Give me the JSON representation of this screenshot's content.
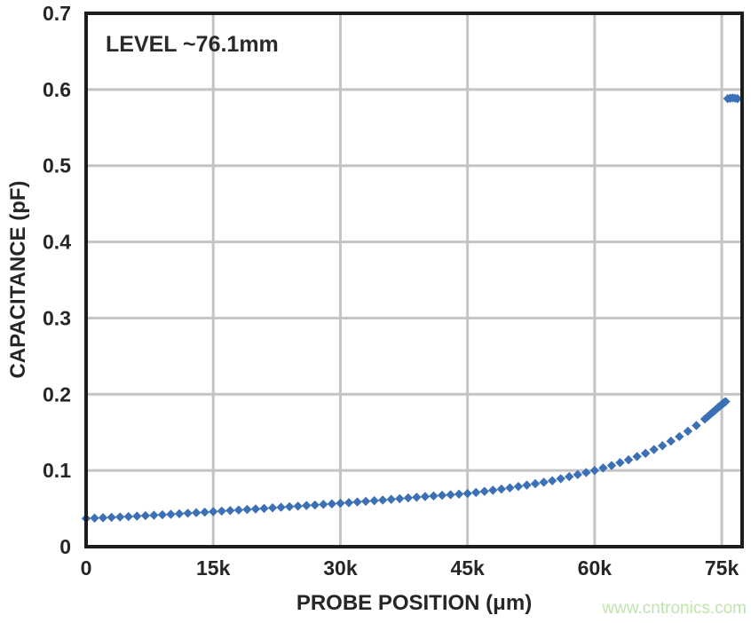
{
  "page": {
    "background": "#ffffff"
  },
  "watermark": {
    "text": "www.cntronics.com",
    "color": "#bfe4ad"
  },
  "chart_data": {
    "type": "scatter",
    "annotation": "LEVEL ~76.1mm",
    "xlabel": "PROBE POSITION (μm)",
    "ylabel": "CAPACITANCE (pF)",
    "xlim": [
      0,
      77400
    ],
    "ylim": [
      0,
      0.7
    ],
    "grid": true,
    "legend": false,
    "xticks": [
      {
        "value": 0,
        "label": "0"
      },
      {
        "value": 15000,
        "label": "15k"
      },
      {
        "value": 30000,
        "label": "30k"
      },
      {
        "value": 45000,
        "label": "45k"
      },
      {
        "value": 60000,
        "label": "60k"
      },
      {
        "value": 75000,
        "label": "75k"
      }
    ],
    "yticks": [
      {
        "value": 0.0,
        "label": "0"
      },
      {
        "value": 0.1,
        "label": "0.1"
      },
      {
        "value": 0.2,
        "label": "0.2"
      },
      {
        "value": 0.3,
        "label": "0.3"
      },
      {
        "value": 0.4,
        "label": "0.4"
      },
      {
        "value": 0.5,
        "label": "0.5"
      },
      {
        "value": 0.6,
        "label": "0.6"
      },
      {
        "value": 0.7,
        "label": "0.7"
      }
    ],
    "marker": {
      "shape": "diamond",
      "size": 10.4,
      "color": "#3b70b6"
    },
    "colors": {
      "grid": "#c4c4c4",
      "frame": "#1d1d1d",
      "text": "#262626"
    },
    "series": [
      {
        "name": "capacitance-vs-position",
        "points": [
          [
            0,
            0.037
          ],
          [
            1000,
            0.0375
          ],
          [
            2000,
            0.038
          ],
          [
            3000,
            0.0385
          ],
          [
            4000,
            0.039
          ],
          [
            5000,
            0.0395
          ],
          [
            6000,
            0.0401
          ],
          [
            7000,
            0.0407
          ],
          [
            8000,
            0.0413
          ],
          [
            9000,
            0.0419
          ],
          [
            10000,
            0.0425
          ],
          [
            11000,
            0.0432
          ],
          [
            12000,
            0.0439
          ],
          [
            13000,
            0.0446
          ],
          [
            14000,
            0.0453
          ],
          [
            15000,
            0.046
          ],
          [
            16000,
            0.0467
          ],
          [
            17000,
            0.0474
          ],
          [
            18000,
            0.0481
          ],
          [
            19000,
            0.0488
          ],
          [
            20000,
            0.0495
          ],
          [
            21000,
            0.0502
          ],
          [
            22000,
            0.051
          ],
          [
            23000,
            0.0517
          ],
          [
            24000,
            0.0525
          ],
          [
            25000,
            0.0532
          ],
          [
            26000,
            0.054
          ],
          [
            27000,
            0.0547
          ],
          [
            28000,
            0.0555
          ],
          [
            29000,
            0.0562
          ],
          [
            30000,
            0.057
          ],
          [
            31000,
            0.0578
          ],
          [
            32000,
            0.0587
          ],
          [
            33000,
            0.0595
          ],
          [
            34000,
            0.0604
          ],
          [
            35000,
            0.0612
          ],
          [
            36000,
            0.0621
          ],
          [
            37000,
            0.063
          ],
          [
            38000,
            0.064
          ],
          [
            39000,
            0.0649
          ],
          [
            40000,
            0.0658
          ],
          [
            41000,
            0.0666
          ],
          [
            42000,
            0.0674
          ],
          [
            43000,
            0.0682
          ],
          [
            44000,
            0.069
          ],
          [
            45000,
            0.0698
          ],
          [
            46000,
            0.0712
          ],
          [
            47000,
            0.0726
          ],
          [
            48000,
            0.0741
          ],
          [
            49000,
            0.0756
          ],
          [
            50000,
            0.0772
          ],
          [
            51000,
            0.079
          ],
          [
            52000,
            0.0808
          ],
          [
            53000,
            0.0827
          ],
          [
            54000,
            0.0846
          ],
          [
            55000,
            0.0865
          ],
          [
            56000,
            0.0892
          ],
          [
            57000,
            0.0919
          ],
          [
            58000,
            0.0946
          ],
          [
            59000,
            0.0973
          ],
          [
            60000,
            0.1
          ],
          [
            61000,
            0.1033
          ],
          [
            62000,
            0.1065
          ],
          [
            63000,
            0.1103
          ],
          [
            64000,
            0.114
          ],
          [
            65000,
            0.1183
          ],
          [
            66000,
            0.1225
          ],
          [
            67000,
            0.1275
          ],
          [
            68000,
            0.1325
          ],
          [
            69000,
            0.1385
          ],
          [
            70000,
            0.1445
          ],
          [
            71000,
            0.1515
          ],
          [
            72000,
            0.159
          ],
          [
            73000,
            0.1675
          ],
          [
            73300,
            0.1703
          ],
          [
            73600,
            0.1732
          ],
          [
            73900,
            0.1761
          ],
          [
            74100,
            0.178
          ],
          [
            74300,
            0.1799
          ],
          [
            74500,
            0.182
          ],
          [
            74650,
            0.1834
          ],
          [
            74800,
            0.1847
          ],
          [
            74950,
            0.1861
          ],
          [
            75050,
            0.187
          ],
          [
            75150,
            0.1879
          ],
          [
            75250,
            0.1888
          ],
          [
            75350,
            0.1896
          ],
          [
            75450,
            0.1904
          ]
        ]
      },
      {
        "name": "level-contact-cluster",
        "points": [
          [
            75700,
            0.588
          ],
          [
            75990,
            0.5885
          ],
          [
            76280,
            0.589
          ],
          [
            76570,
            0.5885
          ],
          [
            76860,
            0.588
          ]
        ]
      }
    ]
  }
}
